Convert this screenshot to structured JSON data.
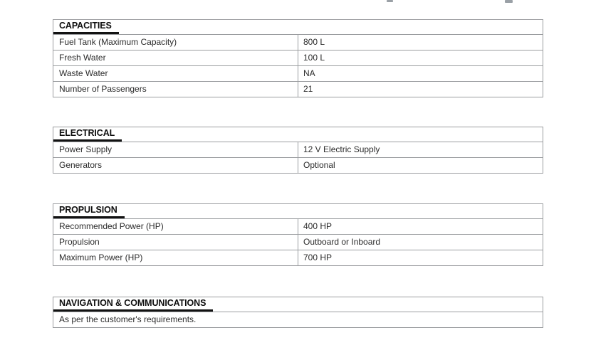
{
  "colors": {
    "border": "#9b9da0",
    "header_underline": "#121212",
    "text": "#2b2b2b",
    "background": "#ffffff"
  },
  "tables": [
    {
      "title": "CAPACITIES",
      "rows": [
        {
          "label": "Fuel Tank (Maximum Capacity)",
          "value": "800 L"
        },
        {
          "label": "Fresh Water",
          "value": "100 L"
        },
        {
          "label": "Waste Water",
          "value": "NA"
        },
        {
          "label": "Number of Passengers",
          "value": "21"
        }
      ]
    },
    {
      "title": "ELECTRICAL",
      "rows": [
        {
          "label": "Power Supply",
          "value": "12 V Electric Supply"
        },
        {
          "label": "Generators",
          "value": "Optional"
        }
      ]
    },
    {
      "title": "PROPULSION",
      "rows": [
        {
          "label": "Recommended Power (HP)",
          "value": "400 HP"
        },
        {
          "label": "Propulsion",
          "value": "Outboard or Inboard"
        },
        {
          "label": "Maximum Power (HP)",
          "value": "700 HP"
        }
      ]
    },
    {
      "title": "NAVIGATION & COMMUNICATIONS",
      "rows": [
        {
          "label": "As per the customer's requirements."
        }
      ]
    }
  ]
}
